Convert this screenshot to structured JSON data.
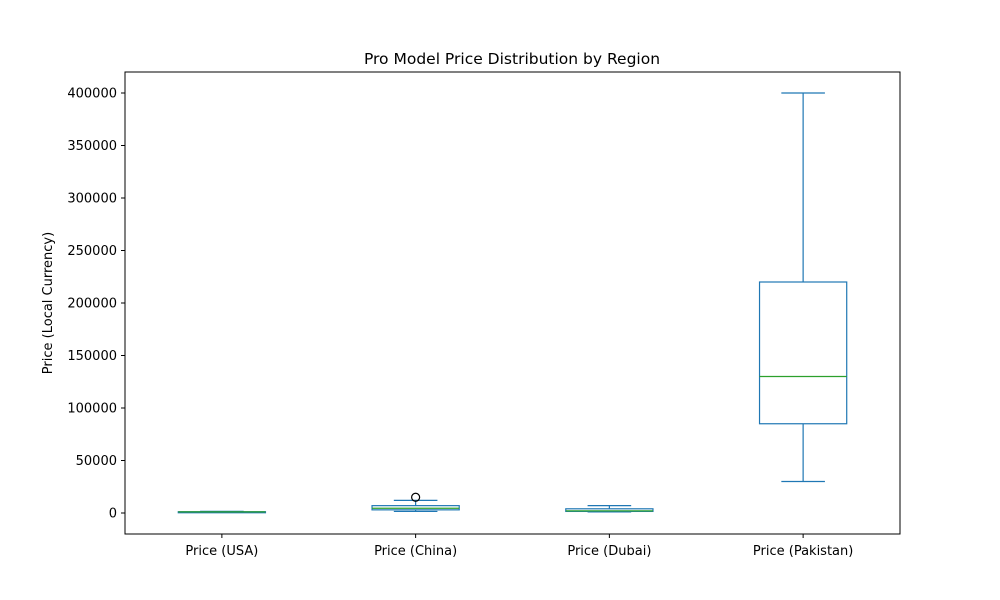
{
  "chart_data": {
    "type": "box",
    "title": "Pro Model Price Distribution by Region",
    "xlabel": "",
    "ylabel": "Price (Local Currency)",
    "ylim": [
      -20000,
      420000
    ],
    "yticks": [
      0,
      50000,
      100000,
      150000,
      200000,
      250000,
      300000,
      350000,
      400000
    ],
    "ytick_labels": [
      "0",
      "50000",
      "100000",
      "150000",
      "200000",
      "250000",
      "300000",
      "350000",
      "400000"
    ],
    "grid": false,
    "colors": {
      "box": "#1f77b4",
      "median": "#2ca02c",
      "outlier": "#000000"
    },
    "categories": [
      "Price (USA)",
      "Price (China)",
      "Price (Dubai)",
      "Price (Pakistan)"
    ],
    "boxes": [
      {
        "label": "Price (USA)",
        "whisker_low": 800,
        "q1": 1000,
        "median": 1100,
        "q3": 1200,
        "whisker_high": 1600,
        "outliers": []
      },
      {
        "label": "Price (China)",
        "whisker_low": 1500,
        "q1": 3000,
        "median": 4500,
        "q3": 7000,
        "whisker_high": 12000,
        "outliers": [
          15000
        ]
      },
      {
        "label": "Price (Dubai)",
        "whisker_low": 1000,
        "q1": 1500,
        "median": 2000,
        "q3": 4000,
        "whisker_high": 7000,
        "outliers": []
      },
      {
        "label": "Price (Pakistan)",
        "whisker_low": 30000,
        "q1": 85000,
        "median": 130000,
        "q3": 220000,
        "whisker_high": 400000,
        "outliers": []
      }
    ]
  }
}
